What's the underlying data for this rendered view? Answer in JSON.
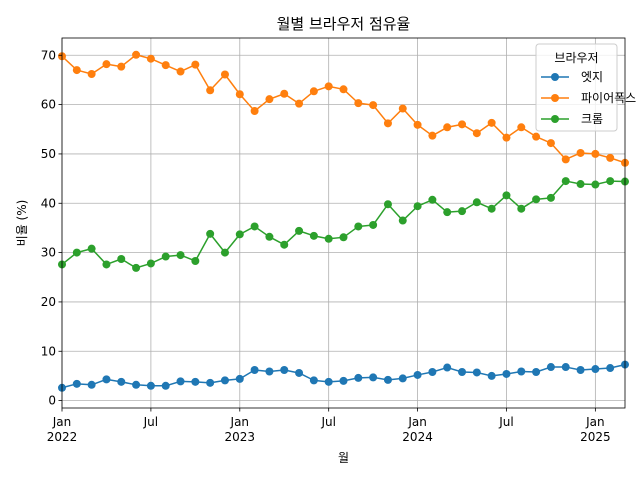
{
  "chart_data": {
    "type": "line",
    "title": "월별 브라우저 점유율",
    "xlabel": "월",
    "ylabel": "비율 (%)",
    "ylim": [
      -1.5,
      73.5
    ],
    "yticks": [
      0,
      10,
      20,
      30,
      40,
      50,
      60,
      70
    ],
    "x_start": "2022-01",
    "x_end": "2025-03",
    "x_ticks": [
      {
        "month": "2022-01",
        "label": "Jan",
        "year": "2022"
      },
      {
        "month": "2022-07",
        "label": "Jul",
        "year": ""
      },
      {
        "month": "2023-01",
        "label": "Jan",
        "year": "2023"
      },
      {
        "month": "2023-07",
        "label": "Jul",
        "year": ""
      },
      {
        "month": "2024-01",
        "label": "Jan",
        "year": "2024"
      },
      {
        "month": "2024-07",
        "label": "Jul",
        "year": ""
      },
      {
        "month": "2025-01",
        "label": "Jan",
        "year": "2025"
      }
    ],
    "grid": true,
    "legend": {
      "title": "브라우저",
      "placement": "top-right"
    },
    "series": [
      {
        "name": "엣지",
        "color": "#1f77b4",
        "values": [
          2.6,
          3.4,
          3.2,
          4.3,
          3.8,
          3.2,
          3.0,
          3.0,
          3.9,
          3.8,
          3.6,
          4.1,
          4.4,
          6.2,
          5.9,
          6.2,
          5.6,
          4.1,
          3.8,
          4.0,
          4.6,
          4.7,
          4.2,
          4.5,
          5.2,
          5.8,
          6.7,
          5.8,
          5.7,
          5.0,
          5.4,
          5.9,
          5.8,
          6.8,
          6.8,
          6.2,
          6.4,
          6.6,
          7.3
        ]
      },
      {
        "name": "파이어폭스",
        "color": "#ff7f0e",
        "values": [
          69.8,
          67.0,
          66.2,
          68.2,
          67.7,
          70.1,
          69.3,
          68.0,
          66.7,
          68.1,
          62.9,
          66.1,
          62.1,
          58.7,
          61.1,
          62.2,
          60.2,
          62.7,
          63.7,
          63.1,
          60.3,
          59.9,
          56.2,
          59.2,
          55.9,
          53.7,
          55.4,
          56.0,
          54.2,
          56.3,
          53.3,
          55.4,
          53.5,
          52.2,
          48.9,
          50.2,
          50.0,
          49.2,
          48.2
        ]
      },
      {
        "name": "크롬",
        "color": "#2ca02c",
        "values": [
          27.6,
          30.0,
          30.8,
          27.6,
          28.7,
          26.9,
          27.8,
          29.2,
          29.5,
          28.3,
          33.8,
          30.0,
          33.7,
          35.3,
          33.2,
          31.6,
          34.4,
          33.4,
          32.8,
          33.1,
          35.3,
          35.6,
          39.8,
          36.5,
          39.4,
          40.7,
          38.2,
          38.4,
          40.2,
          38.9,
          41.6,
          38.9,
          40.8,
          41.1,
          44.5,
          43.9,
          43.8,
          44.5,
          44.4
        ]
      }
    ]
  }
}
